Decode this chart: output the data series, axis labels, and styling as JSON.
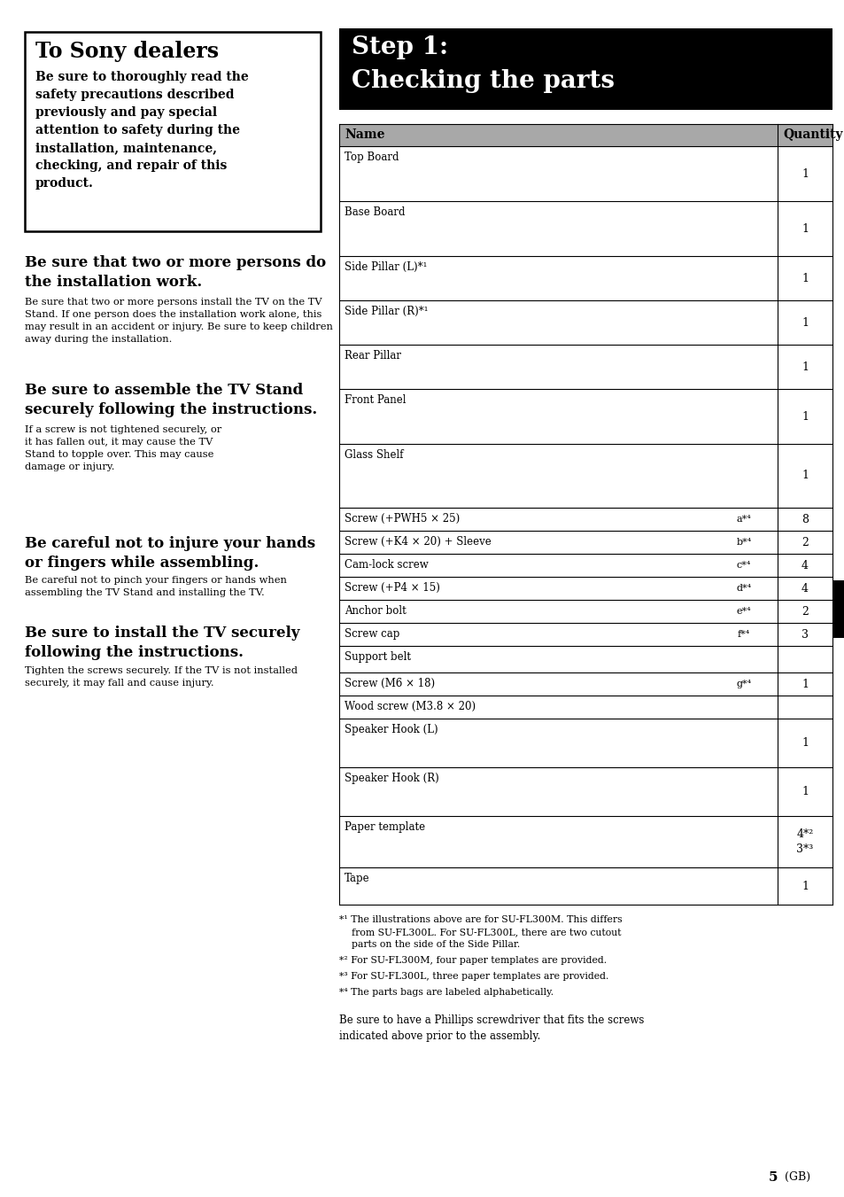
{
  "page_bg": "#ffffff",
  "left_box_title": "To Sony dealers",
  "left_box_body": "Be sure to thoroughly read the\nsafety precautions described\npreviously and pay special\nattention to safety during the\ninstallation, maintenance,\nchecking, and repair of this\nproduct.",
  "section2_title": "Be sure that two or more persons do\nthe installation work.",
  "section2_body": "Be sure that two or more persons install the TV on the TV\nStand. If one person does the installation work alone, this\nmay result in an accident or injury. Be sure to keep children\naway during the installation.",
  "section3_title": "Be sure to assemble the TV Stand\nsecurely following the instructions.",
  "section3_body": "If a screw is not tightened securely, or\nit has fallen out, it may cause the TV\nStand to topple over. This may cause\ndamage or injury.",
  "section4_title": "Be careful not to injure your hands\nor fingers while assembling.",
  "section4_body": "Be careful not to pinch your fingers or hands when\nassembling the TV Stand and installing the TV.",
  "section5_title": "Be sure to install the TV securely\nfollowing the instructions.",
  "section5_body": "Tighten the screws securely. If the TV is not installed\nsecurely, it may fall and cause injury.",
  "right_title_line1": "Step 1:",
  "right_title_line2": "Checking the parts",
  "footnote1": "*¹ The illustrations above are for SU-FL300M. This differs\n    from SU-FL300L. For SU-FL300L, there are two cutout\n    parts on the side of the Side Pillar.",
  "footnote2": "*² For SU-FL300M, four paper templates are provided.",
  "footnote3": "*³ For SU-FL300L, three paper templates are provided.",
  "footnote4": "*⁴ The parts bags are labeled alphabetically.",
  "footer_note": "Be sure to have a Phillips screwdriver that fits the screws\nindicated above prior to the assembly.",
  "page_number": "5",
  "page_number_suffix": "(GB)"
}
